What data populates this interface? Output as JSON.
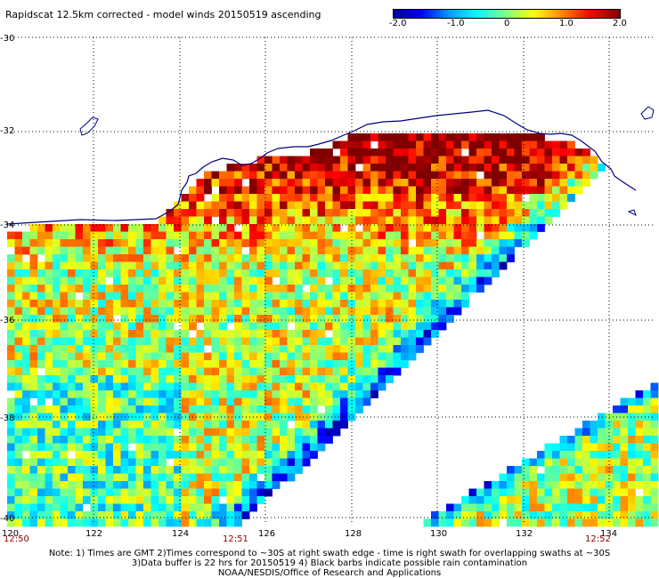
{
  "title": "Rapidscat 12.5km corrected - model winds 20150519 ascending",
  "colorbar": {
    "labels": [
      "-2.0",
      "-1.0",
      "0",
      "1.0",
      "2.0"
    ],
    "colors": [
      "#0000a0",
      "#0000ff",
      "#00a0ff",
      "#00ffff",
      "#80ff80",
      "#ffff00",
      "#ff8000",
      "#ff0000",
      "#800000"
    ]
  },
  "map": {
    "lon_labels": [
      "120",
      "122",
      "124",
      "126",
      "128",
      "130",
      "132",
      "134"
    ],
    "lat_labels": [
      "-30",
      "-32",
      "-34",
      "-36",
      "-38",
      "-40"
    ],
    "time_labels": [
      "12:50",
      "12:51",
      "12:52"
    ],
    "coast_color": "#000080",
    "grid": "dotted"
  },
  "notes": {
    "line1": "Note: 1) Times are GMT 2)Times correspond to ~30S at right swath edge - time is right swath for overlapping swaths at ~30S",
    "line2": "3)Data buffer is 22 hrs for 20150519 4) Black barbs indicate possible rain contamination",
    "line3": "NOAA/NESDIS/Office of Research and Applications"
  }
}
